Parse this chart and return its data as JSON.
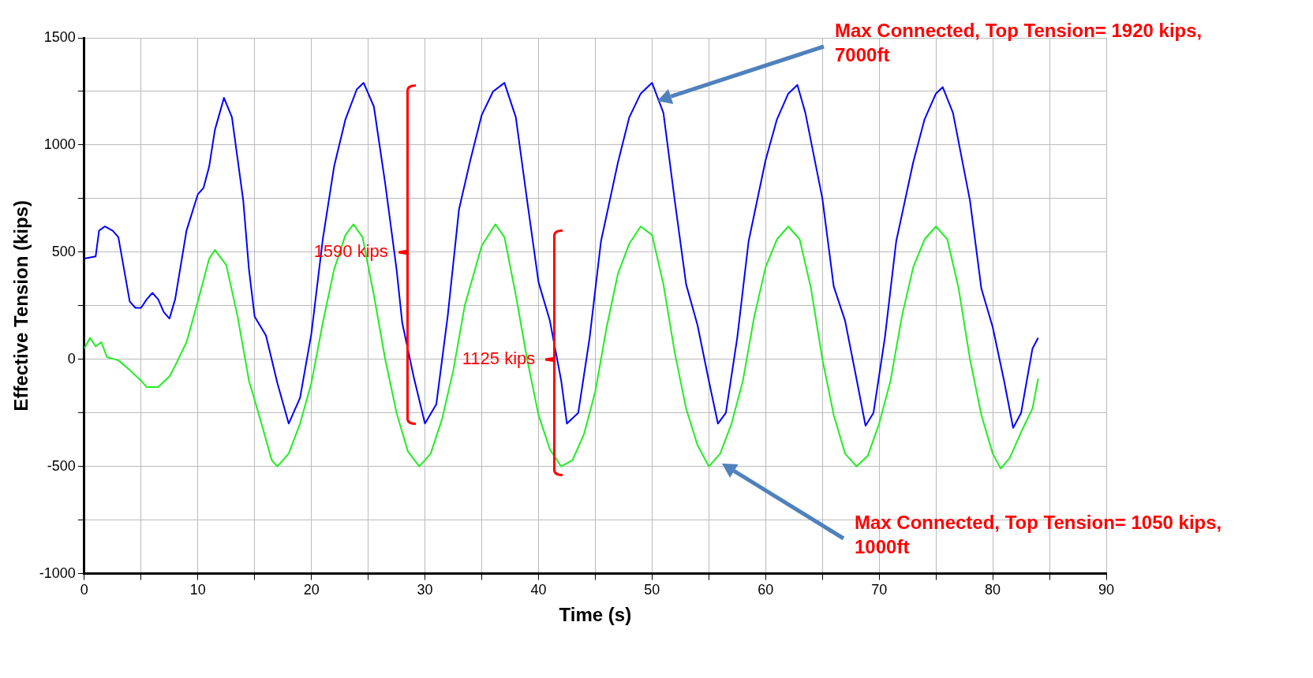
{
  "chart_data": {
    "type": "line",
    "xlabel": "Time (s)",
    "ylabel": "Effective Tension (kips)",
    "xlim": [
      0,
      90
    ],
    "xticks": [
      0,
      {
        "value": 5,
        "label": null
      },
      10,
      {
        "value": 15,
        "label": null
      },
      20,
      {
        "value": 25,
        "label": null
      },
      30,
      {
        "value": 35,
        "label": null
      },
      40,
      {
        "value": 45,
        "label": null
      },
      50,
      {
        "value": 55,
        "label": null
      },
      60,
      {
        "value": 65,
        "label": null
      },
      70,
      {
        "value": 75,
        "label": null
      },
      80,
      {
        "value": 85,
        "label": null
      },
      90
    ],
    "ylim": [
      -1000,
      1500
    ],
    "yticks": [
      -1000,
      {
        "value": -750,
        "label": null
      },
      -500,
      {
        "value": -250,
        "label": null
      },
      0,
      {
        "value": 250,
        "label": null
      },
      500,
      {
        "value": 750,
        "label": null
      },
      1000,
      {
        "value": 1250,
        "label": null
      },
      1500
    ],
    "grid": true,
    "legend": false,
    "marker": "none",
    "line_style": "solid",
    "series": [
      {
        "color": "#0000ff",
        "x": [
          0,
          1,
          1.3,
          1.8,
          2.5,
          3,
          3.5,
          4,
          4.5,
          5,
          5.5,
          6,
          6.5,
          7,
          7.5,
          8,
          9,
          10,
          10.5,
          11,
          11.5,
          12.3,
          13,
          14,
          14.5,
          15,
          16,
          17,
          18,
          19,
          20,
          21,
          22,
          23,
          24,
          24.6,
          25.5,
          26.5,
          27.5,
          28,
          29,
          30,
          31,
          32,
          33,
          34,
          35,
          36,
          37,
          38,
          39,
          40,
          41,
          42,
          42.5,
          43.5,
          44.5,
          45.5,
          47,
          48,
          49,
          50,
          51,
          52,
          53,
          54,
          55,
          55.8,
          56.5,
          57.5,
          58.5,
          60,
          61,
          62,
          62.8,
          63.5,
          65,
          66,
          67,
          68,
          68.8,
          69.5,
          70.5,
          71.5,
          73,
          74,
          75,
          75.6,
          76.5,
          78,
          79,
          80,
          81,
          81.8,
          82.5,
          83.5,
          84
        ],
        "values": [
          470,
          480,
          600,
          620,
          600,
          570,
          420,
          270,
          240,
          240,
          280,
          310,
          280,
          220,
          190,
          280,
          600,
          770,
          800,
          900,
          1070,
          1220,
          1130,
          740,
          420,
          200,
          110,
          -110,
          -300,
          -180,
          120,
          560,
          900,
          1120,
          1260,
          1290,
          1180,
          820,
          420,
          170,
          -80,
          -300,
          -210,
          200,
          700,
          930,
          1140,
          1250,
          1290,
          1130,
          740,
          360,
          180,
          -100,
          -300,
          -250,
          100,
          550,
          920,
          1130,
          1240,
          1290,
          1150,
          740,
          350,
          160,
          -100,
          -300,
          -250,
          100,
          550,
          930,
          1120,
          1240,
          1280,
          1150,
          750,
          340,
          180,
          -90,
          -310,
          -250,
          100,
          550,
          920,
          1120,
          1240,
          1270,
          1150,
          740,
          330,
          150,
          -100,
          -320,
          -250,
          50,
          100
        ]
      },
      {
        "color": "#22ee22",
        "x": [
          0,
          0.5,
          1,
          1.5,
          2,
          3,
          4,
          5,
          5.5,
          6.5,
          7.5,
          8,
          9,
          10,
          11,
          11.5,
          12.5,
          13.5,
          14.5,
          15.5,
          16.5,
          17,
          18,
          19,
          20,
          21,
          22,
          23,
          23.7,
          24.5,
          25.5,
          26.5,
          27.5,
          28.5,
          29.5,
          30.5,
          31.5,
          32.5,
          33.5,
          35,
          36.2,
          37,
          38,
          39,
          40,
          41,
          42,
          43,
          44,
          45,
          46,
          47,
          48,
          49,
          50,
          51,
          52,
          53,
          54,
          55,
          56,
          57,
          58,
          59,
          60,
          61,
          62,
          63,
          64,
          65,
          66,
          67,
          68,
          69,
          70,
          71,
          72,
          73,
          74,
          75,
          76,
          77,
          78,
          79,
          80,
          80.7,
          81.5,
          82.5,
          83.5,
          84
        ],
        "values": [
          50,
          100,
          60,
          80,
          10,
          -5,
          -50,
          -100,
          -130,
          -130,
          -80,
          -30,
          80,
          270,
          470,
          510,
          440,
          200,
          -100,
          -280,
          -470,
          -500,
          -440,
          -300,
          -110,
          170,
          420,
          580,
          630,
          570,
          300,
          0,
          -250,
          -430,
          -500,
          -440,
          -280,
          -50,
          250,
          530,
          630,
          570,
          300,
          0,
          -260,
          -420,
          -500,
          -470,
          -350,
          -150,
          150,
          400,
          540,
          620,
          580,
          350,
          30,
          -230,
          -400,
          -500,
          -440,
          -300,
          -100,
          200,
          430,
          560,
          620,
          560,
          330,
          0,
          -260,
          -440,
          -500,
          -450,
          -300,
          -100,
          200,
          430,
          560,
          620,
          560,
          330,
          0,
          -260,
          -440,
          -510,
          -460,
          -340,
          -230,
          -90
        ]
      }
    ],
    "annotations": [
      "1590 kips",
      "1125 kips",
      "Max Connected, Top Tension= 1920 kips, 7000ft",
      "Max Connected, Top Tension= 1050 kips, 1000ft"
    ]
  }
}
